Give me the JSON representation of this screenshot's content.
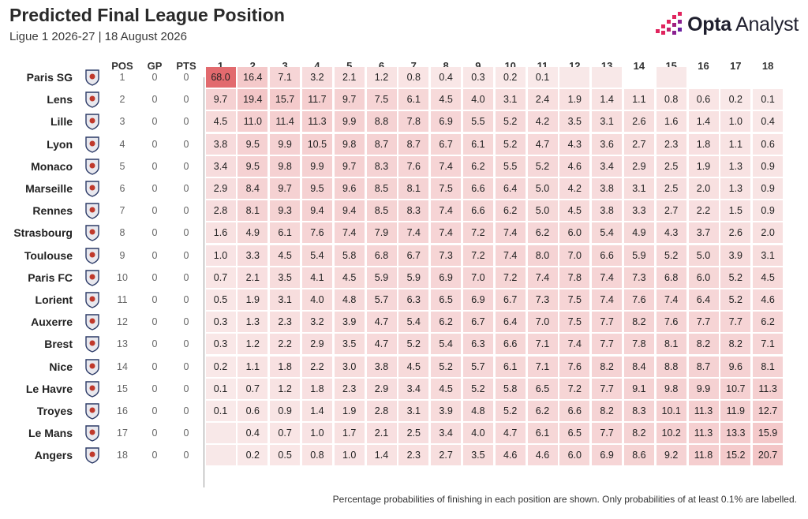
{
  "header": {
    "title": "Predicted Final League Position",
    "subtitle": "Ligue 1 2026-27 | 18 August 2026",
    "logo_bold": "Opta",
    "logo_light": " Analyst"
  },
  "footnote": "Percentage probabilities of finishing in each position are shown. Only probabilities of at least 0.1% are labelled.",
  "colors": {
    "max_cell": "#e26a6e",
    "empty_cell": "#f8e8e8",
    "text": "#222222"
  },
  "chart_data": {
    "type": "heatmap",
    "title": "Predicted Final League Position",
    "subtitle": "Ligue 1 2026-27 | 18 August 2026",
    "columns": [
      "POS",
      "GP",
      "PTS"
    ],
    "positions": [
      "1",
      "2",
      "3",
      "4",
      "5",
      "6",
      "7",
      "8",
      "9",
      "10",
      "11",
      "12",
      "13",
      "14",
      "15",
      "16",
      "17",
      "18"
    ],
    "teams": [
      {
        "name": "Paris SG",
        "badge": "paris-sg-badge",
        "pos": "1",
        "gp": "0",
        "pts": "0",
        "values": [
          "68.0",
          "16.4",
          "7.1",
          "3.2",
          "2.1",
          "1.2",
          "0.8",
          "0.4",
          "0.3",
          "0.2",
          "0.1",
          "<0.1",
          "<0.1",
          null,
          "<0.1",
          null,
          null,
          null
        ]
      },
      {
        "name": "Lens",
        "badge": "lens-badge",
        "pos": "2",
        "gp": "0",
        "pts": "0",
        "values": [
          "9.7",
          "19.4",
          "15.7",
          "11.7",
          "9.7",
          "7.5",
          "6.1",
          "4.5",
          "4.0",
          "3.1",
          "2.4",
          "1.9",
          "1.4",
          "1.1",
          "0.8",
          "0.6",
          "0.2",
          "0.1"
        ]
      },
      {
        "name": "Lille",
        "badge": "lille-badge",
        "pos": "3",
        "gp": "0",
        "pts": "0",
        "values": [
          "4.5",
          "11.0",
          "11.4",
          "11.3",
          "9.9",
          "8.8",
          "7.8",
          "6.9",
          "5.5",
          "5.2",
          "4.2",
          "3.5",
          "3.1",
          "2.6",
          "1.6",
          "1.4",
          "1.0",
          "0.4"
        ]
      },
      {
        "name": "Lyon",
        "badge": "lyon-badge",
        "pos": "4",
        "gp": "0",
        "pts": "0",
        "values": [
          "3.8",
          "9.5",
          "9.9",
          "10.5",
          "9.8",
          "8.7",
          "8.7",
          "6.7",
          "6.1",
          "5.2",
          "4.7",
          "4.3",
          "3.6",
          "2.7",
          "2.3",
          "1.8",
          "1.1",
          "0.6"
        ]
      },
      {
        "name": "Monaco",
        "badge": "monaco-badge",
        "pos": "5",
        "gp": "0",
        "pts": "0",
        "values": [
          "3.4",
          "9.5",
          "9.8",
          "9.9",
          "9.7",
          "8.3",
          "7.6",
          "7.4",
          "6.2",
          "5.5",
          "5.2",
          "4.6",
          "3.4",
          "2.9",
          "2.5",
          "1.9",
          "1.3",
          "0.9"
        ]
      },
      {
        "name": "Marseille",
        "badge": "marseille-badge",
        "pos": "6",
        "gp": "0",
        "pts": "0",
        "values": [
          "2.9",
          "8.4",
          "9.7",
          "9.5",
          "9.6",
          "8.5",
          "8.1",
          "7.5",
          "6.6",
          "6.4",
          "5.0",
          "4.2",
          "3.8",
          "3.1",
          "2.5",
          "2.0",
          "1.3",
          "0.9"
        ]
      },
      {
        "name": "Rennes",
        "badge": "rennes-badge",
        "pos": "7",
        "gp": "0",
        "pts": "0",
        "values": [
          "2.8",
          "8.1",
          "9.3",
          "9.4",
          "9.4",
          "8.5",
          "8.3",
          "7.4",
          "6.6",
          "6.2",
          "5.0",
          "4.5",
          "3.8",
          "3.3",
          "2.7",
          "2.2",
          "1.5",
          "0.9"
        ]
      },
      {
        "name": "Strasbourg",
        "badge": "strasbourg-badge",
        "pos": "8",
        "gp": "0",
        "pts": "0",
        "values": [
          "1.6",
          "4.9",
          "6.1",
          "7.6",
          "7.4",
          "7.9",
          "7.4",
          "7.4",
          "7.2",
          "7.4",
          "6.2",
          "6.0",
          "5.4",
          "4.9",
          "4.3",
          "3.7",
          "2.6",
          "2.0"
        ]
      },
      {
        "name": "Toulouse",
        "badge": "toulouse-badge",
        "pos": "9",
        "gp": "0",
        "pts": "0",
        "values": [
          "1.0",
          "3.3",
          "4.5",
          "5.4",
          "5.8",
          "6.8",
          "6.7",
          "7.3",
          "7.2",
          "7.4",
          "8.0",
          "7.0",
          "6.6",
          "5.9",
          "5.2",
          "5.0",
          "3.9",
          "3.1"
        ]
      },
      {
        "name": "Paris FC",
        "badge": "paris-fc-badge",
        "pos": "10",
        "gp": "0",
        "pts": "0",
        "values": [
          "0.7",
          "2.1",
          "3.5",
          "4.1",
          "4.5",
          "5.9",
          "5.9",
          "6.9",
          "7.0",
          "7.2",
          "7.4",
          "7.8",
          "7.4",
          "7.3",
          "6.8",
          "6.0",
          "5.2",
          "4.5"
        ]
      },
      {
        "name": "Lorient",
        "badge": "lorient-badge",
        "pos": "11",
        "gp": "0",
        "pts": "0",
        "values": [
          "0.5",
          "1.9",
          "3.1",
          "4.0",
          "4.8",
          "5.7",
          "6.3",
          "6.5",
          "6.9",
          "6.7",
          "7.3",
          "7.5",
          "7.4",
          "7.6",
          "7.4",
          "6.4",
          "5.2",
          "4.6"
        ]
      },
      {
        "name": "Auxerre",
        "badge": "auxerre-badge",
        "pos": "12",
        "gp": "0",
        "pts": "0",
        "values": [
          "0.3",
          "1.3",
          "2.3",
          "3.2",
          "3.9",
          "4.7",
          "5.4",
          "6.2",
          "6.7",
          "6.4",
          "7.0",
          "7.5",
          "7.7",
          "8.2",
          "7.6",
          "7.7",
          "7.7",
          "6.2"
        ]
      },
      {
        "name": "Brest",
        "badge": "brest-badge",
        "pos": "13",
        "gp": "0",
        "pts": "0",
        "values": [
          "0.3",
          "1.2",
          "2.2",
          "2.9",
          "3.5",
          "4.7",
          "5.2",
          "5.4",
          "6.3",
          "6.6",
          "7.1",
          "7.4",
          "7.7",
          "7.8",
          "8.1",
          "8.2",
          "8.2",
          "7.1"
        ]
      },
      {
        "name": "Nice",
        "badge": "nice-badge",
        "pos": "14",
        "gp": "0",
        "pts": "0",
        "values": [
          "0.2",
          "1.1",
          "1.8",
          "2.2",
          "3.0",
          "3.8",
          "4.5",
          "5.2",
          "5.7",
          "6.1",
          "7.1",
          "7.6",
          "8.2",
          "8.4",
          "8.8",
          "8.7",
          "9.6",
          "8.1"
        ]
      },
      {
        "name": "Le Havre",
        "badge": "le-havre-badge",
        "pos": "15",
        "gp": "0",
        "pts": "0",
        "values": [
          "0.1",
          "0.7",
          "1.2",
          "1.8",
          "2.3",
          "2.9",
          "3.4",
          "4.5",
          "5.2",
          "5.8",
          "6.5",
          "7.2",
          "7.7",
          "9.1",
          "9.8",
          "9.9",
          "10.7",
          "11.3"
        ]
      },
      {
        "name": "Troyes",
        "badge": "troyes-badge",
        "pos": "16",
        "gp": "0",
        "pts": "0",
        "values": [
          "0.1",
          "0.6",
          "0.9",
          "1.4",
          "1.9",
          "2.8",
          "3.1",
          "3.9",
          "4.8",
          "5.2",
          "6.2",
          "6.6",
          "8.2",
          "8.3",
          "10.1",
          "11.3",
          "11.9",
          "12.7"
        ]
      },
      {
        "name": "Le Mans",
        "badge": "le-mans-badge",
        "pos": "17",
        "gp": "0",
        "pts": "0",
        "values": [
          "<0.1",
          "0.4",
          "0.7",
          "1.0",
          "1.7",
          "2.1",
          "2.5",
          "3.4",
          "4.0",
          "4.7",
          "6.1",
          "6.5",
          "7.7",
          "8.2",
          "10.2",
          "11.3",
          "13.3",
          "15.9"
        ]
      },
      {
        "name": "Angers",
        "badge": "angers-badge",
        "pos": "18",
        "gp": "0",
        "pts": "0",
        "values": [
          "<0.1",
          "0.2",
          "0.5",
          "0.8",
          "1.0",
          "1.4",
          "2.3",
          "2.7",
          "3.5",
          "4.6",
          "4.6",
          "6.0",
          "6.9",
          "8.6",
          "9.2",
          "11.8",
          "15.2",
          "20.7"
        ]
      }
    ]
  }
}
